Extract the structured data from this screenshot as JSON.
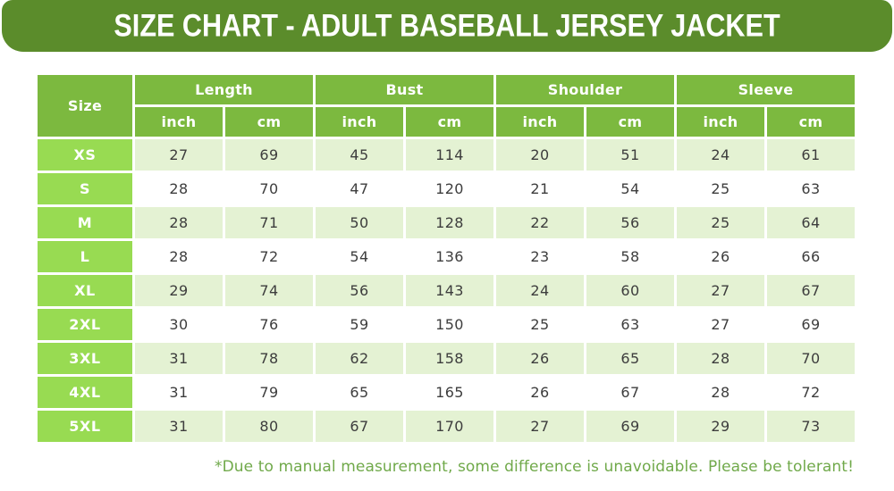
{
  "banner": {
    "title": "SIZE CHART - ADULT BASEBALL JERSEY JACKET"
  },
  "chart_data": {
    "type": "table",
    "title": "SIZE CHART - ADULT BASEBALL JERSEY JACKET",
    "size_header": "Size",
    "column_groups": [
      {
        "label": "Length",
        "units": [
          "inch",
          "cm"
        ]
      },
      {
        "label": "Bust",
        "units": [
          "inch",
          "cm"
        ]
      },
      {
        "label": "Shoulder",
        "units": [
          "inch",
          "cm"
        ]
      },
      {
        "label": "Sleeve",
        "units": [
          "inch",
          "cm"
        ]
      }
    ],
    "rows": [
      {
        "size": "XS",
        "values": [
          27,
          69,
          45,
          114,
          20,
          51,
          24,
          61
        ]
      },
      {
        "size": "S",
        "values": [
          28,
          70,
          47,
          120,
          21,
          54,
          25,
          63
        ]
      },
      {
        "size": "M",
        "values": [
          28,
          71,
          50,
          128,
          22,
          56,
          25,
          64
        ]
      },
      {
        "size": "L",
        "values": [
          28,
          72,
          54,
          136,
          23,
          58,
          26,
          66
        ]
      },
      {
        "size": "XL",
        "values": [
          29,
          74,
          56,
          143,
          24,
          60,
          27,
          67
        ]
      },
      {
        "size": "2XL",
        "values": [
          30,
          76,
          59,
          150,
          25,
          63,
          27,
          69
        ]
      },
      {
        "size": "3XL",
        "values": [
          31,
          78,
          62,
          158,
          26,
          65,
          28,
          70
        ]
      },
      {
        "size": "4XL",
        "values": [
          31,
          79,
          65,
          165,
          26,
          67,
          28,
          72
        ]
      },
      {
        "size": "5XL",
        "values": [
          31,
          80,
          67,
          170,
          27,
          69,
          29,
          73
        ]
      }
    ],
    "note": "*Due to manual measurement, some difference is unavoidable. Please be tolerant!"
  },
  "colors": {
    "banner_green": "#5B8C2B",
    "header_green": "#7CB93F",
    "size_cell_green": "#98DB52",
    "row_alt_green": "#E4F2D3",
    "row_white": "#FFFFFF",
    "data_text": "#3D3D3D",
    "note_green": "#70A94A"
  }
}
